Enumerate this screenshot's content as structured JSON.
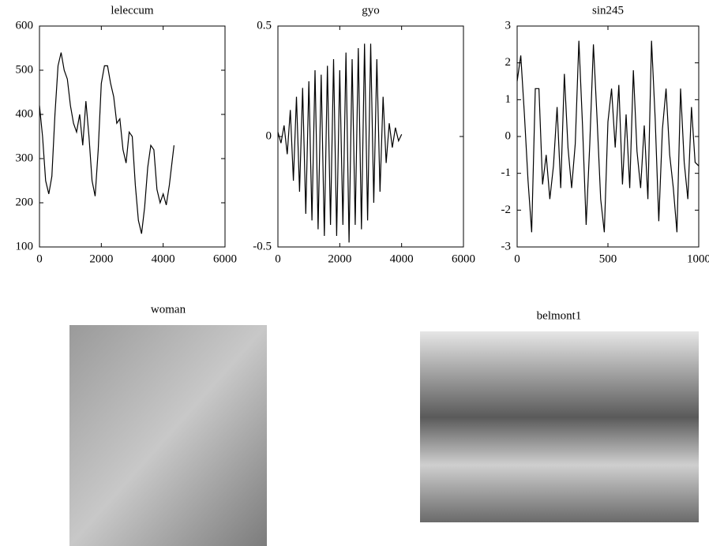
{
  "chart_data": [
    {
      "type": "line",
      "title": "leleccum",
      "color": "#000000",
      "x": [
        0,
        100,
        200,
        300,
        400,
        500,
        600,
        700,
        800,
        900,
        1000,
        1100,
        1200,
        1300,
        1400,
        1500,
        1600,
        1700,
        1800,
        1900,
        2000,
        2100,
        2200,
        2300,
        2400,
        2500,
        2600,
        2700,
        2800,
        2900,
        3000,
        3100,
        3200,
        3300,
        3400,
        3500,
        3600,
        3700,
        3800,
        3900,
        4000,
        4100,
        4200,
        4300,
        4350
      ],
      "values": [
        420,
        350,
        250,
        220,
        260,
        400,
        510,
        540,
        500,
        480,
        420,
        380,
        360,
        400,
        330,
        430,
        350,
        250,
        215,
        320,
        470,
        510,
        510,
        470,
        440,
        380,
        390,
        320,
        290,
        360,
        350,
        240,
        160,
        130,
        190,
        280,
        330,
        320,
        230,
        200,
        220,
        195,
        240,
        300,
        330
      ],
      "xlim": [
        0,
        6000
      ],
      "xticks": [
        0,
        2000,
        4000,
        6000
      ],
      "ylim": [
        100,
        600
      ],
      "yticks": [
        100,
        200,
        300,
        400,
        500,
        600
      ]
    },
    {
      "type": "line",
      "title": "gyo",
      "color": "#000000",
      "x": [
        0,
        100,
        200,
        300,
        400,
        500,
        600,
        700,
        800,
        900,
        1000,
        1100,
        1200,
        1300,
        1400,
        1500,
        1600,
        1700,
        1800,
        1900,
        2000,
        2100,
        2200,
        2300,
        2400,
        2500,
        2600,
        2700,
        2800,
        2900,
        3000,
        3100,
        3200,
        3300,
        3400,
        3500,
        3600,
        3700,
        3800,
        3900,
        4000
      ],
      "values": [
        0.02,
        -0.03,
        0.05,
        -0.08,
        0.12,
        -0.2,
        0.18,
        -0.25,
        0.22,
        -0.35,
        0.25,
        -0.38,
        0.3,
        -0.42,
        0.28,
        -0.45,
        0.32,
        -0.4,
        0.35,
        -0.45,
        0.3,
        -0.4,
        0.38,
        -0.48,
        0.35,
        -0.4,
        0.4,
        -0.42,
        0.42,
        -0.38,
        0.42,
        -0.3,
        0.35,
        -0.25,
        0.18,
        -0.12,
        0.06,
        -0.05,
        0.04,
        -0.02,
        0.01
      ],
      "xlim": [
        0,
        6000
      ],
      "xticks": [
        0,
        2000,
        4000,
        6000
      ],
      "ylim": [
        -0.5,
        0.5
      ],
      "yticks": [
        -0.5,
        0,
        0.5
      ]
    },
    {
      "type": "line",
      "title": "sin245",
      "color": "#000000",
      "x": [
        0,
        20,
        40,
        60,
        80,
        100,
        120,
        140,
        160,
        180,
        200,
        220,
        240,
        260,
        280,
        300,
        320,
        340,
        360,
        380,
        400,
        420,
        440,
        460,
        480,
        500,
        520,
        540,
        560,
        580,
        600,
        620,
        640,
        660,
        680,
        700,
        720,
        740,
        760,
        780,
        800,
        820,
        840,
        860,
        880,
        900,
        920,
        940,
        960,
        980,
        1000
      ],
      "values": [
        1.5,
        2.2,
        0.6,
        -1.2,
        -2.6,
        1.3,
        1.3,
        -1.3,
        -0.5,
        -1.7,
        -0.8,
        0.8,
        -1.4,
        1.7,
        -0.3,
        -1.4,
        -0.2,
        2.6,
        0.3,
        -2.4,
        -0.2,
        2.5,
        0.5,
        -1.7,
        -2.6,
        0.4,
        1.3,
        -0.3,
        1.4,
        -1.3,
        0.6,
        -1.4,
        1.8,
        -0.4,
        -1.4,
        0.3,
        -1.7,
        2.6,
        0.5,
        -2.3,
        0.2,
        1.3,
        -0.5,
        -1.4,
        -2.6,
        1.3,
        -0.7,
        -1.7,
        0.8,
        -0.7,
        -0.8
      ],
      "xlim": [
        0,
        1000
      ],
      "xticks": [
        0,
        500,
        1000
      ],
      "ylim": [
        -3,
        3
      ],
      "yticks": [
        -3,
        -2,
        -1,
        0,
        1,
        2,
        3
      ]
    }
  ],
  "images": [
    {
      "title": "woman"
    },
    {
      "title": "belmont1"
    }
  ]
}
